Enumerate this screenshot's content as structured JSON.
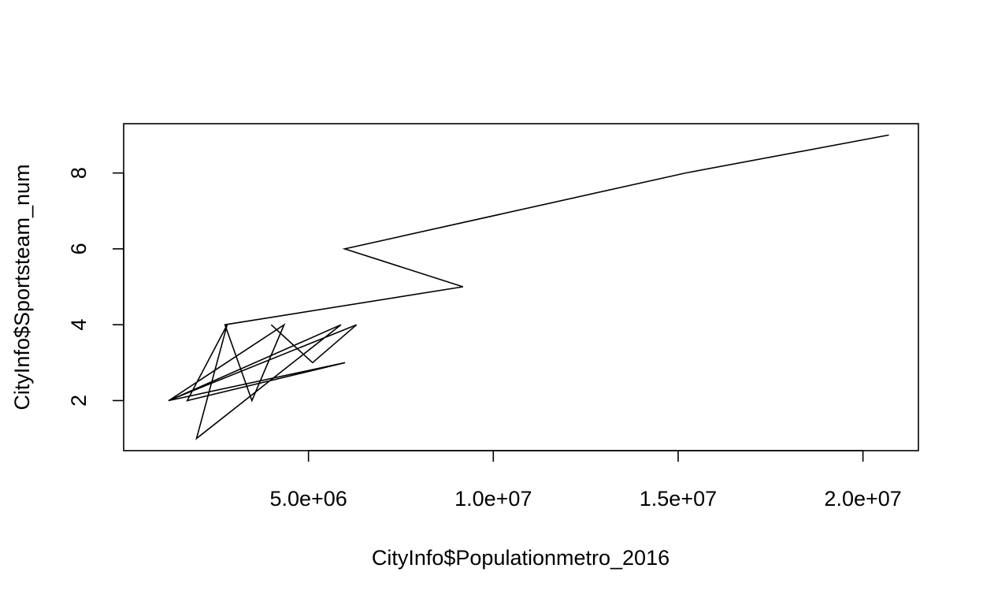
{
  "chart_data": {
    "type": "line",
    "title": "",
    "xlabel": "CityInfo$Populationmetro_2016",
    "ylabel": "CityInfo$Sportsteam_num",
    "xlim": [
      0,
      21500000
    ],
    "ylim": [
      0.68,
      9.3
    ],
    "x_ticks": [
      {
        "value": 5000000,
        "label": "5.0e+06"
      },
      {
        "value": 10000000,
        "label": "1.0e+07"
      },
      {
        "value": 15000000,
        "label": "1.5e+07"
      },
      {
        "value": 20000000,
        "label": "2.0e+07"
      }
    ],
    "y_ticks": [
      {
        "value": 2,
        "label": "2"
      },
      {
        "value": 4,
        "label": "4"
      },
      {
        "value": 6,
        "label": "6"
      },
      {
        "value": 8,
        "label": "8"
      }
    ],
    "grid": false,
    "legend": "none",
    "series": [
      {
        "x": [
          20700000,
          15200000,
          5980000,
          9180000,
          2740000,
          3470000,
          4340000,
          1220000,
          5880000,
          1970000,
          2800000,
          1720000,
          5990000,
          1210000,
          6300000,
          5110000,
          3990000
        ],
        "y": [
          9,
          8,
          6,
          5,
          4,
          2,
          4,
          2,
          4,
          1,
          4,
          2,
          3,
          2,
          4,
          3,
          4
        ]
      }
    ],
    "colors": {
      "line": "#000000",
      "axis": "#000000",
      "background": "#ffffff"
    }
  }
}
